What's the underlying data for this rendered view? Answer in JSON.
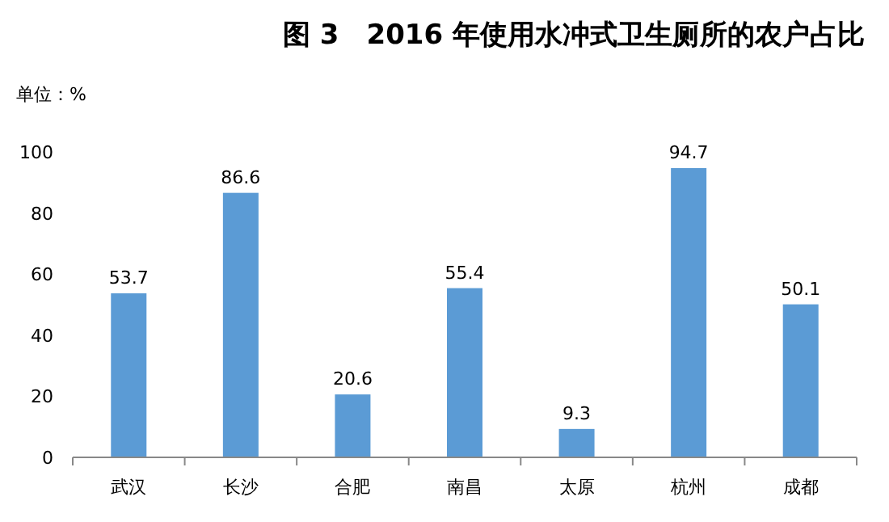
{
  "chart_data": {
    "type": "bar",
    "title": "图 3　2016 年使用水冲式卫生厕所的农户占比",
    "ylabel": "单位：%",
    "categories": [
      "武汉",
      "长沙",
      "合肥",
      "南昌",
      "太原",
      "杭州",
      "成都"
    ],
    "values": [
      53.7,
      86.6,
      20.6,
      55.4,
      9.3,
      94.7,
      50.1
    ],
    "color": "#5b9bd5",
    "ylim": [
      0,
      100
    ],
    "yticks": [
      0,
      20,
      40,
      60,
      80,
      100
    ],
    "data_labels": true
  }
}
